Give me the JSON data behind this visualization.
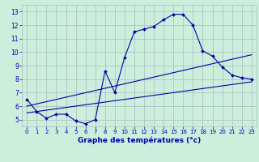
{
  "xlabel": "Graphe des températures (°c)",
  "bg_color": "#cceedd",
  "grid_color": "#aabbbb",
  "line_color": "#0000aa",
  "hours": [
    0,
    1,
    2,
    3,
    4,
    5,
    6,
    7,
    8,
    9,
    10,
    11,
    12,
    13,
    14,
    15,
    16,
    17,
    18,
    19,
    20,
    21,
    22,
    23
  ],
  "temps": [
    6.5,
    5.6,
    5.1,
    5.4,
    5.4,
    4.9,
    4.7,
    5.0,
    8.6,
    7.0,
    9.6,
    11.5,
    11.7,
    11.9,
    12.4,
    12.8,
    12.8,
    12.0,
    10.1,
    9.7,
    8.9,
    8.3,
    8.1,
    8.0
  ],
  "trend1_x": [
    0,
    23
  ],
  "trend1_y": [
    6.0,
    9.8
  ],
  "trend2_x": [
    0,
    23
  ],
  "trend2_y": [
    5.5,
    7.8
  ],
  "ylim": [
    4.5,
    13.5
  ],
  "xlim": [
    -0.5,
    23.5
  ],
  "yticks": [
    5,
    6,
    7,
    8,
    9,
    10,
    11,
    12,
    13
  ],
  "xticks": [
    0,
    1,
    2,
    3,
    4,
    5,
    6,
    7,
    8,
    9,
    10,
    11,
    12,
    13,
    14,
    15,
    16,
    17,
    18,
    19,
    20,
    21,
    22,
    23
  ],
  "ylabel_fontsize": 5.5,
  "xlabel_fontsize": 6.5,
  "tick_fontsize": 5.0
}
